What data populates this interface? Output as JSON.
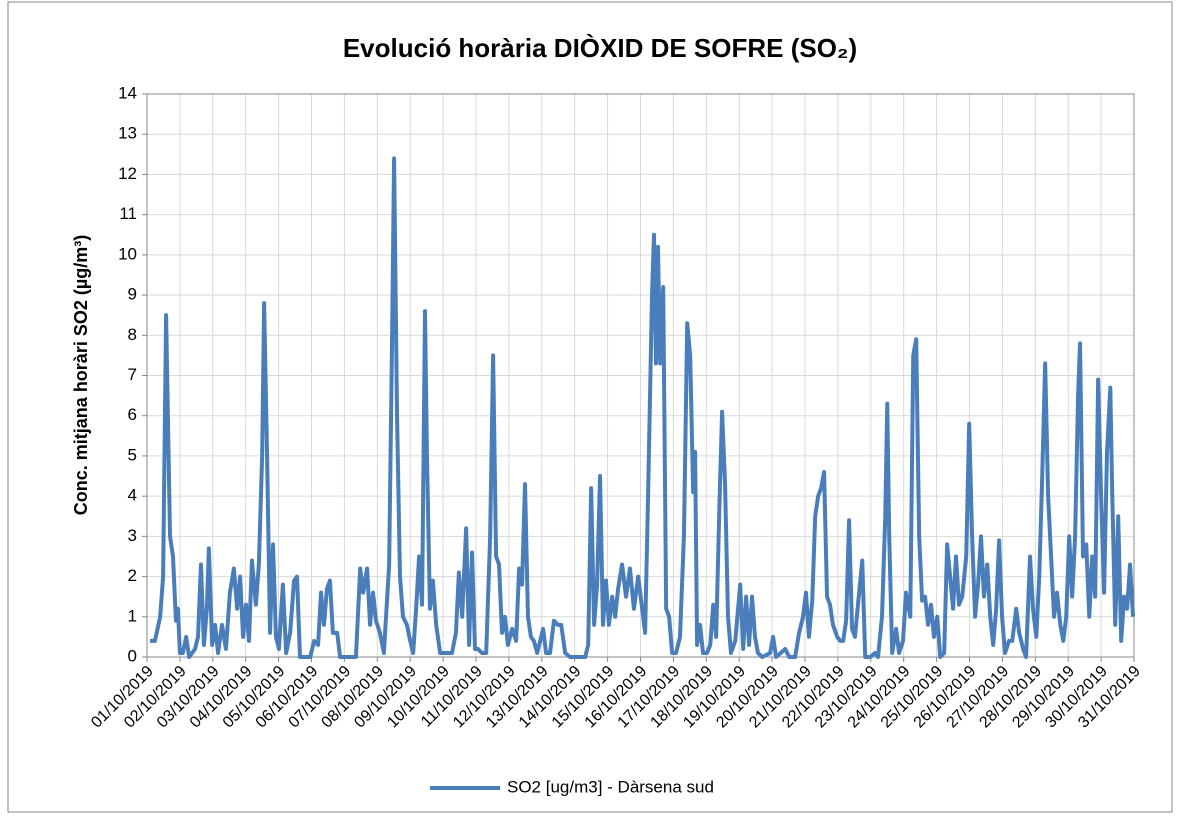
{
  "chart_data": {
    "type": "line",
    "title": "Evolució horària DIÒXID DE SOFRE (SO₂)",
    "y_label": "Conc. mitjana horàri SO2 (µg/m³)",
    "xlim": [
      0,
      30
    ],
    "xticks": [
      {
        "value": 0,
        "label": "01/10/2019"
      },
      {
        "value": 1,
        "label": "02/10/2019"
      },
      {
        "value": 2,
        "label": "03/10/2019"
      },
      {
        "value": 3,
        "label": "04/10/2019"
      },
      {
        "value": 4,
        "label": "05/10/2019"
      },
      {
        "value": 5,
        "label": "06/10/2019"
      },
      {
        "value": 6,
        "label": "07/10/2019"
      },
      {
        "value": 7,
        "label": "08/10/2019"
      },
      {
        "value": 8,
        "label": "09/10/2019"
      },
      {
        "value": 9,
        "label": "10/10/2019"
      },
      {
        "value": 10,
        "label": "11/10/2019"
      },
      {
        "value": 11,
        "label": "12/10/2019"
      },
      {
        "value": 12,
        "label": "13/10/2019"
      },
      {
        "value": 13,
        "label": "14/10/2019"
      },
      {
        "value": 14,
        "label": "15/10/2019"
      },
      {
        "value": 15,
        "label": "16/10/2019"
      },
      {
        "value": 16,
        "label": "17/10/2019"
      },
      {
        "value": 17,
        "label": "18/10/2019"
      },
      {
        "value": 18,
        "label": "19/10/2019"
      },
      {
        "value": 19,
        "label": "20/10/2019"
      },
      {
        "value": 20,
        "label": "21/10/2019"
      },
      {
        "value": 21,
        "label": "22/10/2019"
      },
      {
        "value": 22,
        "label": "23/10/2019"
      },
      {
        "value": 23,
        "label": "24/10/2019"
      },
      {
        "value": 24,
        "label": "25/10/2019"
      },
      {
        "value": 25,
        "label": "26/10/2019"
      },
      {
        "value": 26,
        "label": "27/10/2019"
      },
      {
        "value": 27,
        "label": "28/10/2019"
      },
      {
        "value": 28,
        "label": "29/10/2019"
      },
      {
        "value": 29,
        "label": "30/10/2019"
      },
      {
        "value": 30,
        "label": "31/10/2019"
      }
    ],
    "ylim": [
      0,
      14
    ],
    "yticks": [
      0,
      1,
      2,
      3,
      4,
      5,
      6,
      7,
      8,
      9,
      10,
      11,
      12,
      13,
      14
    ],
    "grid": true,
    "legend": "bottom",
    "x": [
      0.09,
      0.24,
      0.4,
      0.49,
      0.58,
      0.7,
      0.79,
      0.88,
      0.94,
      1.0,
      1.09,
      1.19,
      1.28,
      1.46,
      1.55,
      1.64,
      1.73,
      1.82,
      1.88,
      1.98,
      2.07,
      2.16,
      2.28,
      2.4,
      2.52,
      2.64,
      2.74,
      2.83,
      2.92,
      3.01,
      3.1,
      3.19,
      3.31,
      3.4,
      3.5,
      3.56,
      3.65,
      3.74,
      3.83,
      3.92,
      4.01,
      4.13,
      4.23,
      4.35,
      4.47,
      4.56,
      4.65,
      4.96,
      5.08,
      5.2,
      5.29,
      5.38,
      5.47,
      5.56,
      5.65,
      5.78,
      5.87,
      6.35,
      6.48,
      6.57,
      6.69,
      6.78,
      6.87,
      6.96,
      7.08,
      7.2,
      7.36,
      7.45,
      7.51,
      7.6,
      7.69,
      7.78,
      7.9,
      8.0,
      8.09,
      8.18,
      8.27,
      8.36,
      8.45,
      8.51,
      8.6,
      8.69,
      8.79,
      8.91,
      9.12,
      9.27,
      9.39,
      9.48,
      9.58,
      9.7,
      9.79,
      9.88,
      9.97,
      10.06,
      10.18,
      10.31,
      10.43,
      10.52,
      10.61,
      10.7,
      10.79,
      10.88,
      10.97,
      11.1,
      11.22,
      11.31,
      11.4,
      11.49,
      11.58,
      11.67,
      11.76,
      11.86,
      11.95,
      12.04,
      12.13,
      12.25,
      12.37,
      12.49,
      12.59,
      12.71,
      12.86,
      13.32,
      13.41,
      13.5,
      13.59,
      13.68,
      13.77,
      13.86,
      13.95,
      14.04,
      14.14,
      14.23,
      14.32,
      14.44,
      14.56,
      14.68,
      14.8,
      14.93,
      15.02,
      15.14,
      15.23,
      15.35,
      15.41,
      15.47,
      15.53,
      15.6,
      15.69,
      15.78,
      15.87,
      15.96,
      16.08,
      16.2,
      16.32,
      16.42,
      16.51,
      16.6,
      16.66,
      16.72,
      16.81,
      16.9,
      17.02,
      17.12,
      17.21,
      17.3,
      17.39,
      17.48,
      17.57,
      17.66,
      17.75,
      17.88,
      18.03,
      18.12,
      18.21,
      18.3,
      18.39,
      18.48,
      18.57,
      18.7,
      18.94,
      19.03,
      19.12,
      19.4,
      19.52,
      19.7,
      19.82,
      19.94,
      20.03,
      20.12,
      20.22,
      20.31,
      20.4,
      20.49,
      20.58,
      20.67,
      20.76,
      20.85,
      20.98,
      21.07,
      21.16,
      21.25,
      21.34,
      21.43,
      21.52,
      21.61,
      21.74,
      21.83,
      21.98,
      22.13,
      22.22,
      22.34,
      22.44,
      22.5,
      22.56,
      22.65,
      22.77,
      22.86,
      22.98,
      23.07,
      23.2,
      23.29,
      23.38,
      23.47,
      23.56,
      23.65,
      23.74,
      23.83,
      23.92,
      24.02,
      24.11,
      24.23,
      24.32,
      24.41,
      24.5,
      24.59,
      24.68,
      24.78,
      24.9,
      24.99,
      25.08,
      25.17,
      25.26,
      25.35,
      25.44,
      25.54,
      25.63,
      25.72,
      25.81,
      25.9,
      25.99,
      26.08,
      26.2,
      26.3,
      26.42,
      26.51,
      26.63,
      26.72,
      26.84,
      26.93,
      27.03,
      27.12,
      27.21,
      27.3,
      27.39,
      27.48,
      27.57,
      27.66,
      27.76,
      27.85,
      27.94,
      28.03,
      28.12,
      28.21,
      28.3,
      28.36,
      28.45,
      28.55,
      28.64,
      28.73,
      28.82,
      28.91,
      29.0,
      29.09,
      29.18,
      29.28,
      29.34,
      29.43,
      29.52,
      29.61,
      29.7,
      29.79,
      29.88,
      29.97
    ],
    "series": [
      {
        "name": "SO2 [ug/m3] - Dàrsena sud",
        "color": "#4a7ebb",
        "values": [
          0.4,
          0.4,
          1.0,
          2,
          8.5,
          3,
          2.5,
          0.9,
          1.2,
          0.1,
          0.1,
          0.5,
          0,
          0.2,
          0.5,
          2.3,
          0.3,
          1.2,
          2.7,
          0.3,
          0.8,
          0.1,
          0.8,
          0.2,
          1.6,
          2.2,
          1.2,
          2.0,
          0.5,
          1.3,
          0.4,
          2.4,
          1.3,
          2.3,
          5,
          8.8,
          5,
          0.6,
          2.8,
          0.5,
          0.2,
          1.8,
          0.1,
          0.6,
          1.9,
          2.0,
          0,
          0,
          0.4,
          0.3,
          1.6,
          0.8,
          1.7,
          1.9,
          0.6,
          0.6,
          0,
          0,
          2.2,
          1.6,
          2.2,
          0.8,
          1.6,
          0.9,
          0.6,
          0.1,
          2.3,
          8,
          12.4,
          6,
          2,
          1,
          0.8,
          0.4,
          0.1,
          1.2,
          2.5,
          1.3,
          8.6,
          5,
          1.2,
          1.9,
          0.8,
          0.1,
          0.1,
          0.1,
          0.6,
          2.1,
          1.0,
          3.2,
          0.3,
          2.6,
          0.2,
          0.2,
          0.1,
          0.1,
          3,
          7.5,
          2.5,
          2.3,
          0.6,
          1.0,
          0.3,
          0.7,
          0.4,
          2.2,
          1.8,
          4.3,
          1.0,
          0.5,
          0.4,
          0.1,
          0.4,
          0.7,
          0.1,
          0.1,
          0.9,
          0.8,
          0.8,
          0.1,
          0,
          0,
          0.3,
          4.2,
          0.8,
          1.8,
          4.5,
          0.8,
          1.9,
          0.8,
          1.5,
          1.0,
          1.7,
          2.3,
          1.5,
          2.2,
          1.2,
          2.0,
          1.4,
          0.6,
          4,
          9,
          10.5,
          7.3,
          10.2,
          7.3,
          9.2,
          1.2,
          1.0,
          0.1,
          0.1,
          0.5,
          3,
          8.3,
          7.5,
          4.1,
          5.1,
          0.3,
          0.8,
          0.1,
          0.1,
          0.3,
          1.3,
          0.5,
          3.5,
          6.1,
          4.3,
          1.0,
          0.1,
          0.4,
          1.8,
          0.2,
          1.5,
          0.3,
          1.5,
          0.5,
          0.1,
          0,
          0.1,
          0.5,
          0,
          0.2,
          0,
          0,
          0.6,
          1.0,
          1.6,
          0.5,
          1.4,
          3.5,
          4,
          4.2,
          4.6,
          1.5,
          1.3,
          0.8,
          0.5,
          0.4,
          0.4,
          0.9,
          3.4,
          0.7,
          0.5,
          1.3,
          2.4,
          0,
          0,
          0.1,
          0,
          1.0,
          3.5,
          6.3,
          3,
          0.1,
          0.7,
          0.1,
          0.4,
          1.6,
          1.0,
          7.5,
          7.9,
          3,
          1.4,
          1.5,
          0.8,
          1.3,
          0.5,
          1.0,
          0,
          0.1,
          2.8,
          2.0,
          1.2,
          2.5,
          1.3,
          1.5,
          2.5,
          5.8,
          3,
          1.0,
          1.8,
          3.0,
          1.5,
          2.3,
          1.0,
          0.3,
          1.2,
          2.9,
          1.0,
          0.1,
          0.4,
          0.4,
          1.2,
          0.6,
          0.2,
          0,
          2.5,
          1.2,
          0.5,
          2,
          4.5,
          7.3,
          4,
          2.5,
          1.0,
          1.6,
          0.8,
          0.4,
          1.0,
          3,
          1.5,
          3,
          6.5,
          7.8,
          2.5,
          2.8,
          1.0,
          2.5,
          1.5,
          6.9,
          4,
          1.6,
          5.1,
          6.7,
          4,
          0.8,
          3.5,
          0.4,
          1.5,
          1.2,
          2.3,
          1.0
        ]
      }
    ]
  }
}
